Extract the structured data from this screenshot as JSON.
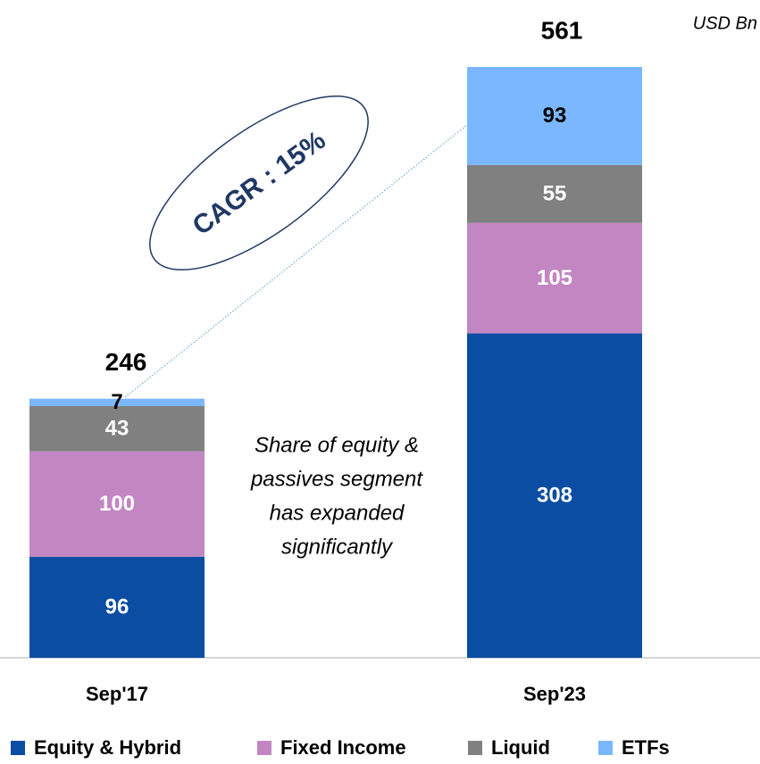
{
  "chart_data": {
    "type": "stacked_bar",
    "unit_label": "USD Bn",
    "categories": [
      "Sep'17",
      "Sep'23"
    ],
    "series": [
      {
        "name": "Equity & Hybrid",
        "color": "#0a4da2",
        "label_color": "#ffffff",
        "values": [
          96,
          308
        ]
      },
      {
        "name": "Fixed Income",
        "color": "#c287c2",
        "label_color": "#ffffff",
        "values": [
          100,
          105
        ]
      },
      {
        "name": "Liquid",
        "color": "#808080",
        "label_color": "#ffffff",
        "values": [
          43,
          55
        ]
      },
      {
        "name": "ETFs",
        "color": "#7ab7ff",
        "label_color": "#000000",
        "values": [
          7,
          93
        ]
      }
    ],
    "totals": [
      246,
      561
    ],
    "ylim": [
      0,
      600
    ],
    "cagr_label": "CAGR : 15%",
    "note": [
      "Share of equity &",
      "passives segment",
      "has expanded",
      "significantly"
    ]
  }
}
